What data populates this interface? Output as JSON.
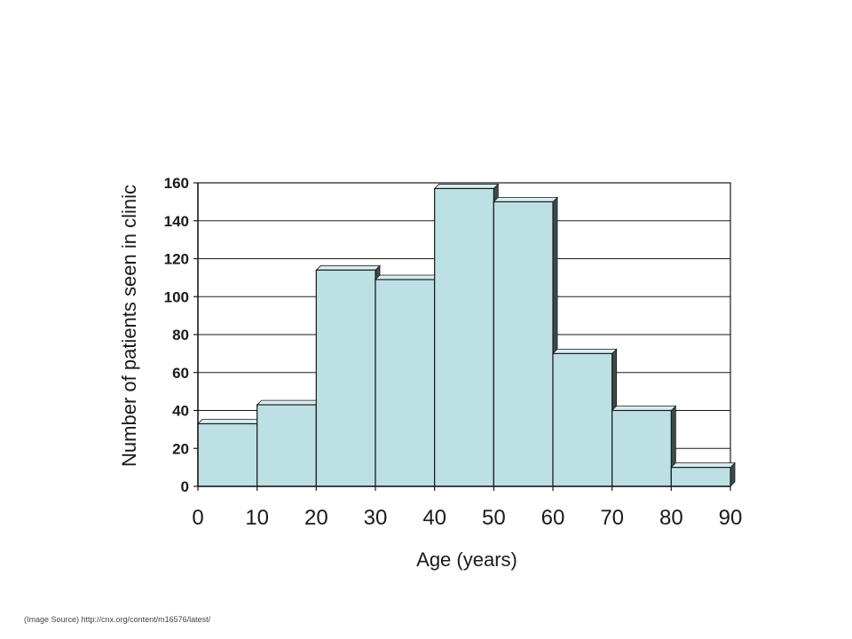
{
  "chart_data": {
    "type": "bar",
    "bin_edges": [
      0,
      10,
      20,
      30,
      40,
      50,
      60,
      70,
      80,
      90
    ],
    "values": [
      33,
      43,
      114,
      109,
      157,
      150,
      70,
      40,
      10
    ],
    "xlabel": "Age (years)",
    "ylabel": "Number of patients seen in clinic",
    "xlim": [
      0,
      90
    ],
    "ylim": [
      0,
      160
    ],
    "yticks": [
      0,
      20,
      40,
      60,
      80,
      100,
      120,
      140,
      160
    ],
    "xticks": [
      0,
      10,
      20,
      30,
      40,
      50,
      60,
      70,
      80,
      90
    ],
    "grid": true,
    "bar_color": "#bde0e4",
    "bar_side_color": "#3c4a4c",
    "edge_color": "#1a1a1a"
  },
  "source_text": "(Image Source) http://cnx.org/content/m16576/latest/"
}
